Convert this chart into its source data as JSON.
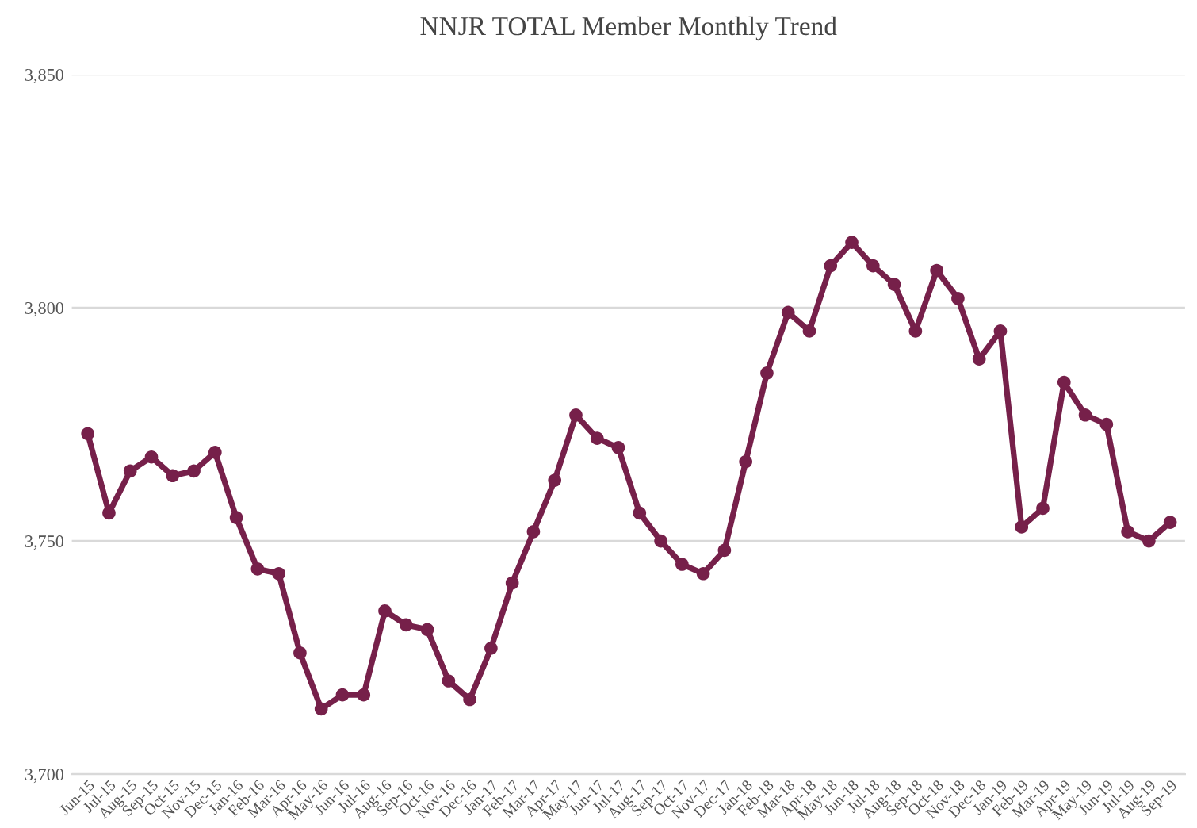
{
  "chart_data": {
    "type": "line",
    "title": "NNJR TOTAL Member Monthly Trend",
    "categories": [
      "Jun-15",
      "Jul-15",
      "Aug-15",
      "Sep-15",
      "Oct-15",
      "Nov-15",
      "Dec-15",
      "Jan-16",
      "Feb-16",
      "Mar-16",
      "Apr-16",
      "May-16",
      "Jun-16",
      "Jul-16",
      "Aug-16",
      "Sep-16",
      "Oct-16",
      "Nov-16",
      "Dec-16",
      "Jan-17",
      "Feb-17",
      "Mar-17",
      "Apr-17",
      "May-17",
      "Jun-17",
      "Jul-17",
      "Aug-17",
      "Sep-17",
      "Oct-17",
      "Nov-17",
      "Dec-17",
      "Jan-18",
      "Feb-18",
      "Mar-18",
      "Apr-18",
      "May-18",
      "Jun-18",
      "Jul-18",
      "Aug-18",
      "Sep-18",
      "Oct-18",
      "Nov-18",
      "Dec-18",
      "Jan-19",
      "Feb-19",
      "Mar-19",
      "Apr-19",
      "May-19",
      "Jun-19",
      "Jul-19",
      "Aug-19",
      "Sep-19"
    ],
    "series": [
      {
        "color": "#76204a",
        "values": [
          3773,
          3756,
          3765,
          3768,
          3764,
          3765,
          3769,
          3755,
          3744,
          3743,
          3726,
          3714,
          3717,
          3717,
          3735,
          3732,
          3731,
          3720,
          3716,
          3727,
          3741,
          3752,
          3763,
          3777,
          3772,
          3770,
          3756,
          3750,
          3745,
          3743,
          3748,
          3767,
          3786,
          3799,
          3795,
          3809,
          3814,
          3809,
          3805,
          3795,
          3808,
          3802,
          3789,
          3795,
          3753,
          3757,
          3784,
          3777,
          3775,
          3752,
          3750,
          3754
        ]
      }
    ],
    "ylim": [
      3700,
      3850
    ],
    "yticks": [
      {
        "value": 3700,
        "label": "3,700"
      },
      {
        "value": 3750,
        "label": "3,750"
      },
      {
        "value": 3800,
        "label": "3,800"
      },
      {
        "value": 3850,
        "label": "3,850"
      }
    ],
    "grid": "y",
    "marker": "circle",
    "line_style": "solid",
    "legend": false
  }
}
